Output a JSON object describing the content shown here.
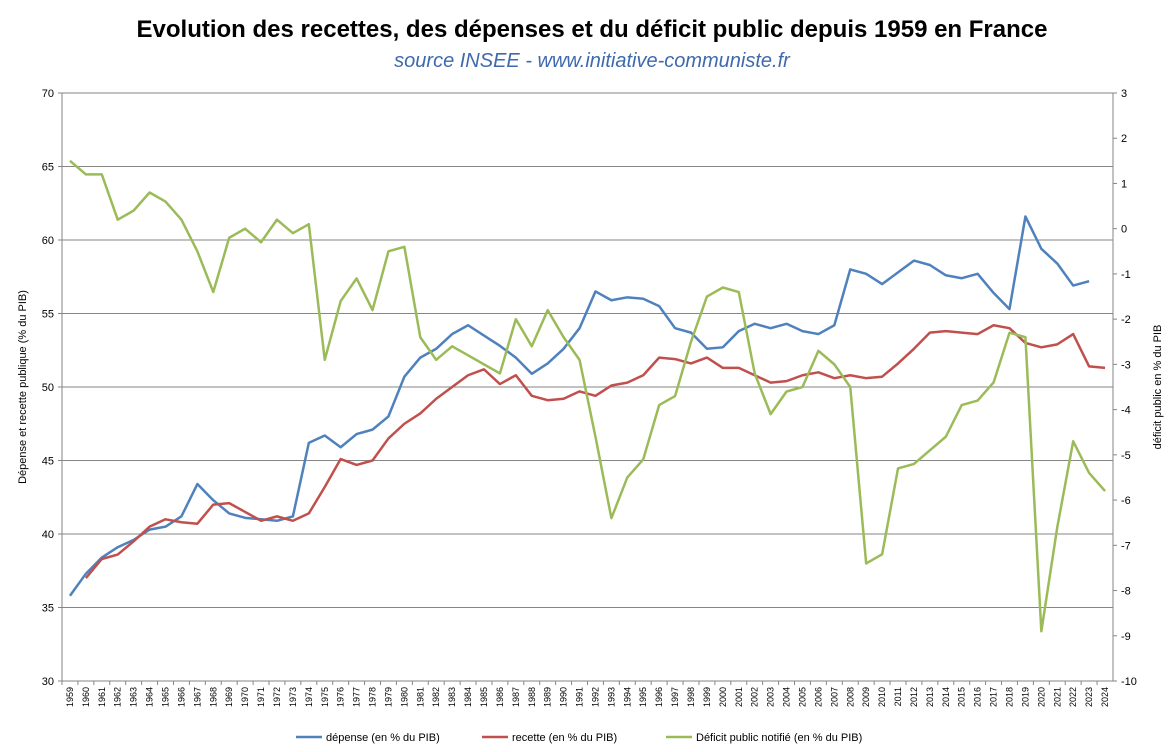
{
  "chart_data": {
    "type": "line",
    "title": "Evolution des recettes, des dépenses et du déficit public depuis 1959 en France",
    "subtitle": "source INSEE - www.initiative-communiste.fr",
    "ylabel_left": "Dépense et recette publique (% du PIB)",
    "ylabel_right": "déficit public en % du PIB",
    "ylim_left": [
      30,
      70
    ],
    "ylim_right": [
      -10,
      3
    ],
    "yticks_left": [
      "30",
      "35",
      "40",
      "45",
      "50",
      "55",
      "60",
      "65",
      "70"
    ],
    "yticks_right": [
      "-10",
      "-9",
      "-8",
      "-7",
      "-6",
      "-5",
      "-4",
      "-3",
      "-2",
      "-1",
      "0",
      "1",
      "2",
      "3"
    ],
    "grid": true,
    "legend_position": "bottom",
    "categories": [
      "1959",
      "1960",
      "1961",
      "1962",
      "1963",
      "1964",
      "1965",
      "1966",
      "1967",
      "1968",
      "1969",
      "1970",
      "1971",
      "1972",
      "1973",
      "1974",
      "1975",
      "1976",
      "1977",
      "1978",
      "1979",
      "1980",
      "1981",
      "1982",
      "1983",
      "1984",
      "1985",
      "1986",
      "1987",
      "1988",
      "1989",
      "1990",
      "1991",
      "1992",
      "1993",
      "1994",
      "1995",
      "1996",
      "1997",
      "1998",
      "1999",
      "2000",
      "2001",
      "2002",
      "2003",
      "2004",
      "2005",
      "2006",
      "2007",
      "2008",
      "2009",
      "2010",
      "2011",
      "2012",
      "2013",
      "2014",
      "2015",
      "2016",
      "2017",
      "2018",
      "2019",
      "2020",
      "2021",
      "2022",
      "2023",
      "2024"
    ],
    "series": [
      {
        "name": "dépense (en % du PIB)",
        "axis": "left",
        "color": "#4f81bd",
        "values": [
          35.8,
          37.3,
          38.4,
          39.1,
          39.6,
          40.3,
          40.5,
          41.2,
          43.4,
          42.3,
          41.4,
          41.1,
          41.0,
          40.9,
          41.2,
          46.2,
          46.7,
          45.9,
          46.8,
          47.1,
          48.0,
          50.7,
          52.0,
          52.6,
          53.6,
          54.2,
          53.5,
          52.8,
          52.0,
          50.9,
          51.6,
          52.6,
          54.0,
          56.5,
          55.9,
          56.1,
          56.0,
          55.5,
          54.0,
          53.7,
          52.6,
          52.7,
          53.8,
          54.3,
          54.0,
          54.3,
          53.8,
          53.6,
          54.2,
          58.0,
          57.7,
          57.0,
          57.8,
          58.6,
          58.3,
          57.6,
          57.4,
          57.7,
          56.4,
          55.3,
          61.6,
          59.4,
          58.4,
          56.9,
          57.2,
          null
        ]
      },
      {
        "name": "recette (en % du PIB)",
        "axis": "left",
        "color": "#c0504d",
        "values": [
          null,
          37.0,
          38.3,
          38.6,
          39.5,
          40.5,
          41.0,
          40.8,
          40.7,
          42.0,
          42.1,
          41.5,
          40.9,
          41.2,
          40.9,
          41.4,
          43.2,
          45.1,
          44.7,
          45.0,
          46.5,
          47.5,
          48.2,
          49.2,
          50.0,
          50.8,
          51.2,
          50.2,
          50.8,
          49.4,
          49.1,
          49.2,
          49.7,
          49.4,
          50.1,
          50.3,
          50.8,
          52.0,
          51.9,
          51.6,
          52.0,
          51.3,
          51.3,
          50.8,
          50.3,
          50.4,
          50.8,
          51.0,
          50.6,
          50.8,
          50.6,
          50.7,
          51.6,
          52.6,
          53.7,
          53.8,
          53.7,
          53.6,
          54.2,
          54.0,
          53.0,
          52.7,
          52.9,
          53.6,
          51.4,
          51.3
        ]
      },
      {
        "name": "Déficit public notifié (en % du PIB)",
        "axis": "right",
        "color": "#9bbb59",
        "values": [
          1.5,
          1.2,
          1.2,
          0.2,
          0.4,
          0.8,
          0.6,
          0.2,
          -0.5,
          -1.4,
          -0.2,
          0.0,
          -0.3,
          0.2,
          -0.1,
          0.1,
          -2.9,
          -1.6,
          -1.1,
          -1.8,
          -0.5,
          -0.4,
          -2.4,
          -2.9,
          -2.6,
          -2.8,
          -3.0,
          -3.2,
          -2.0,
          -2.6,
          -1.8,
          -2.4,
          -2.9,
          -4.6,
          -6.4,
          -5.5,
          -5.1,
          -3.9,
          -3.7,
          -2.5,
          -1.5,
          -1.3,
          -1.4,
          -3.2,
          -4.1,
          -3.6,
          -3.5,
          -2.7,
          -3.0,
          -3.5,
          -7.4,
          -7.2,
          -5.3,
          -5.2,
          -4.9,
          -4.6,
          -3.9,
          -3.8,
          -3.4,
          -2.3,
          -2.4,
          -8.9,
          -6.6,
          -4.7,
          -5.4,
          -5.8
        ]
      }
    ]
  }
}
